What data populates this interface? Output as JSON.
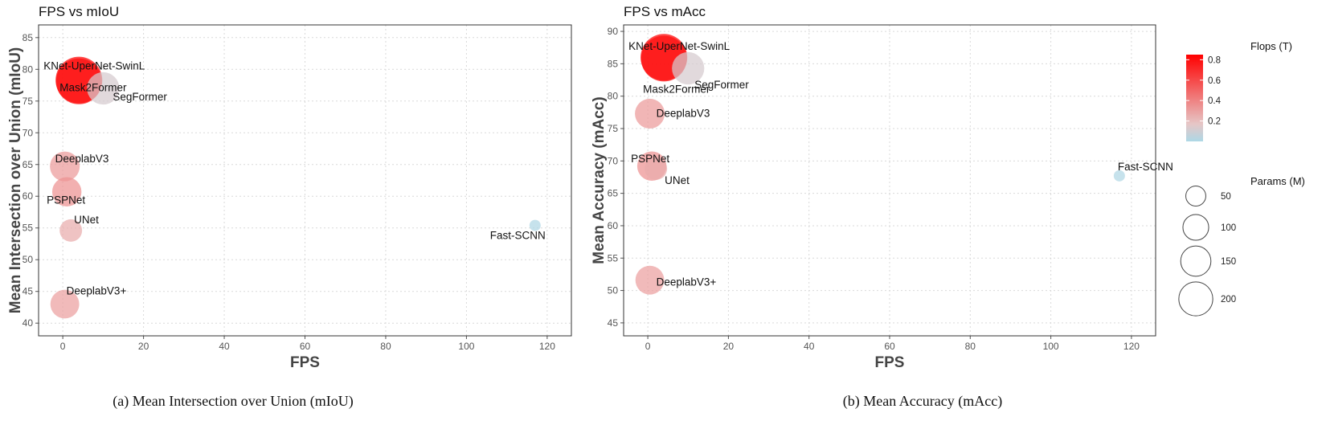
{
  "captions": [
    "(a) Mean Intersection over Union (mIoU)",
    "(b) Mean Accuracy (mAcc)"
  ],
  "chart_data": [
    {
      "type": "scatter",
      "title": "FPS vs mIoU",
      "xlabel": "FPS",
      "ylabel": "Mean Intersection over Union (mIoU)",
      "xlim": [
        -6,
        126
      ],
      "ylim": [
        38,
        87
      ],
      "xticks": [
        0,
        20,
        40,
        60,
        80,
        100,
        120
      ],
      "yticks": [
        40,
        45,
        50,
        55,
        60,
        65,
        70,
        75,
        80,
        85
      ],
      "grid": true,
      "points": [
        {
          "label": "KNet-UperNet-SwinL",
          "x": 4,
          "y": 78.1,
          "params": 205,
          "flops": 0.8
        },
        {
          "label": "Mask2Former",
          "x": 4,
          "y": 78.3,
          "params": 215,
          "flops": 0.85
        },
        {
          "label": "SegFormer",
          "x": 10,
          "y": 77.0,
          "params": 85,
          "flops": 0.12
        },
        {
          "label": "DeeplabV3",
          "x": 0.5,
          "y": 64.7,
          "params": 68,
          "flops": 0.32
        },
        {
          "label": "PSPNet",
          "x": 1,
          "y": 60.7,
          "params": 65,
          "flops": 0.35
        },
        {
          "label": "UNet",
          "x": 2,
          "y": 54.6,
          "params": 30,
          "flops": 0.26
        },
        {
          "label": "Fast-SCNN",
          "x": 117,
          "y": 55.4,
          "params": 1.5,
          "flops": 0.01
        },
        {
          "label": "DeeplabV3+",
          "x": 0.5,
          "y": 43.0,
          "params": 62,
          "flops": 0.3
        }
      ]
    },
    {
      "type": "scatter",
      "title": "FPS vs mAcc",
      "xlabel": "FPS",
      "ylabel": "Mean Accuracy (mAcc)",
      "xlim": [
        -6,
        126
      ],
      "ylim": [
        43,
        91
      ],
      "xticks": [
        0,
        20,
        40,
        60,
        80,
        100,
        120
      ],
      "yticks": [
        45,
        50,
        55,
        60,
        65,
        70,
        75,
        80,
        85,
        90
      ],
      "grid": true,
      "points": [
        {
          "label": "KNet-UperNet-SwinL",
          "x": 4,
          "y": 85.8,
          "params": 205,
          "flops": 0.8
        },
        {
          "label": "Mask2Former",
          "x": 4,
          "y": 86.0,
          "params": 215,
          "flops": 0.85
        },
        {
          "label": "SegFormer",
          "x": 10,
          "y": 84.3,
          "params": 85,
          "flops": 0.12
        },
        {
          "label": "DeeplabV3",
          "x": 0.5,
          "y": 77.3,
          "params": 68,
          "flops": 0.32
        },
        {
          "label": "PSPNet",
          "x": 1,
          "y": 69.2,
          "params": 65,
          "flops": 0.35
        },
        {
          "label": "UNet",
          "x": 2,
          "y": 68.8,
          "params": 30,
          "flops": 0.26
        },
        {
          "label": "Fast-SCNN",
          "x": 117,
          "y": 67.7,
          "params": 1.5,
          "flops": 0.01
        },
        {
          "label": "DeeplabV3+",
          "x": 0.5,
          "y": 51.6,
          "params": 62,
          "flops": 0.3
        }
      ]
    }
  ],
  "legend": {
    "placement": "right",
    "color": {
      "title": "Flops (T)",
      "ticks": [
        0.2,
        0.4,
        0.6,
        0.8
      ],
      "range": [
        0.0,
        0.85
      ],
      "low_color": "#add8e6",
      "mid_color": "#e6c6c6",
      "high_color": "#ff0000"
    },
    "size": {
      "title": "Params (M)",
      "values": [
        50,
        100,
        150,
        200
      ]
    }
  }
}
